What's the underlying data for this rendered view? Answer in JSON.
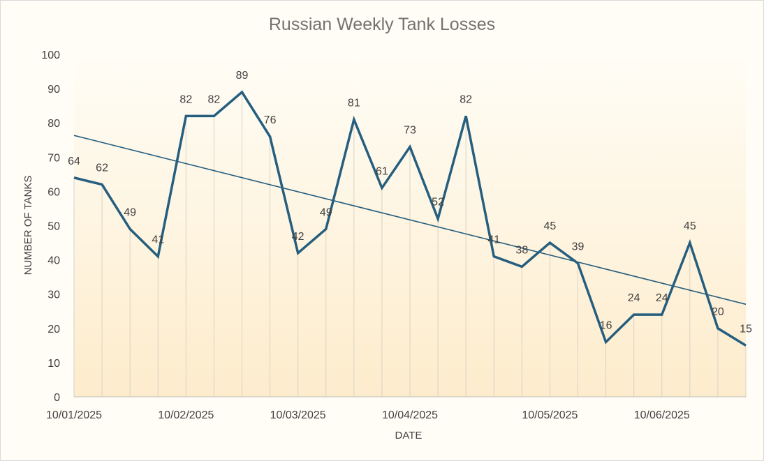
{
  "chart_data": {
    "type": "line",
    "title": "Russian Weekly Tank Losses",
    "xlabel": "DATE",
    "ylabel": "NUMBER OF TANKS",
    "ylim": [
      0,
      100
    ],
    "yticks": [
      0,
      10,
      20,
      30,
      40,
      50,
      60,
      70,
      80,
      90,
      100
    ],
    "x_tick_labels": [
      {
        "index": 0,
        "label": "10/01/2025"
      },
      {
        "index": 4,
        "label": "10/02/2025"
      },
      {
        "index": 8,
        "label": "10/03/2025"
      },
      {
        "index": 12,
        "label": "10/04/2025"
      },
      {
        "index": 17,
        "label": "10/05/2025"
      },
      {
        "index": 21,
        "label": "10/06/2025"
      }
    ],
    "series": [
      {
        "values": [
          64,
          62,
          49,
          41,
          82,
          82,
          89,
          76,
          42,
          49,
          81,
          61,
          73,
          52,
          82,
          41,
          38,
          45,
          39,
          16,
          24,
          24,
          45,
          20,
          15
        ],
        "color": "#255e7e"
      }
    ],
    "trendline": {
      "type": "linear",
      "color": "#255e7e"
    },
    "grid": "vertical drop lines",
    "legend": "none",
    "fill_gradient": [
      "#fdf0d2",
      "#fffdf6"
    ]
  }
}
